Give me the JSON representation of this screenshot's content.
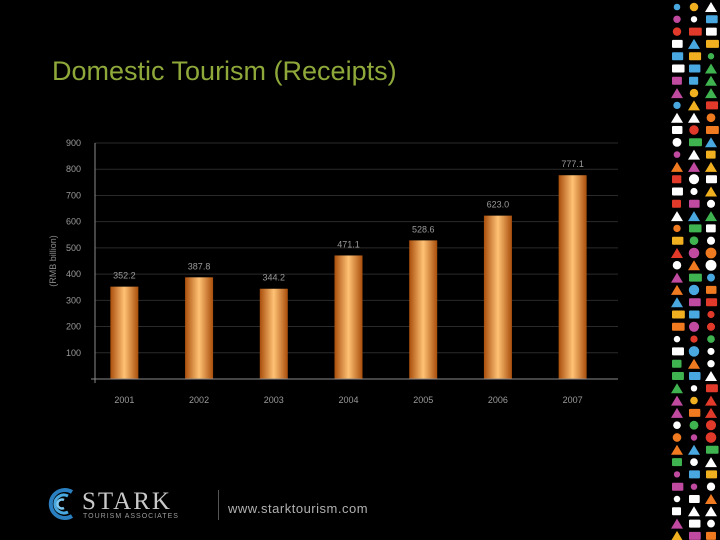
{
  "slide": {
    "title": "Domestic Tourism (Receipts)"
  },
  "colors": {
    "title": "#8fa83a",
    "bar_dark": "#b85a10",
    "bar_light": "#ffbf6a",
    "axis": "#8a8a8a",
    "grid": "#2a2a2a",
    "label": "#9a9a9a"
  },
  "chart_data": {
    "type": "bar",
    "title": "",
    "xlabel": "",
    "ylabel": "(RMB billion)",
    "categories": [
      "2001",
      "2002",
      "2003",
      "2004",
      "2005",
      "2006",
      "2007"
    ],
    "values": [
      352.2,
      387.8,
      344.2,
      471.1,
      528.6,
      623.0,
      777.1
    ],
    "value_labels": [
      "352.2",
      "387.8",
      "344.2",
      "471.1",
      "528.6",
      "623.0",
      "777.1"
    ],
    "yticks": [
      "100",
      "200",
      "300",
      "400",
      "500",
      "600",
      "700",
      "800",
      "900"
    ],
    "ylim": [
      0,
      900
    ],
    "grid": true,
    "legend": "none"
  },
  "footer": {
    "company_name": "STARK",
    "company_sub": "TOURISM ASSOCIATES",
    "website": "www.starktourism.com",
    "logo_icon": "stark-swirl-logo-icon"
  },
  "decoration": {
    "strip_icon": "travel-icons-strip-icon"
  }
}
